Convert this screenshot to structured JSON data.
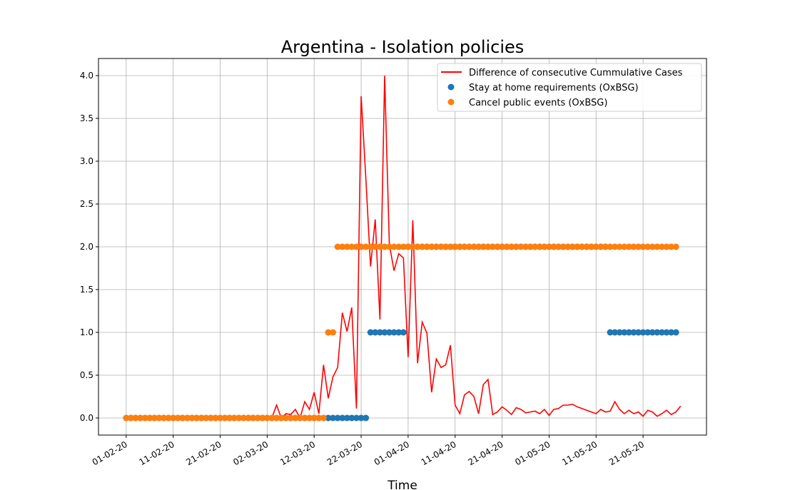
{
  "chart_data": {
    "type": "line",
    "title": "Argentina - Isolation policies",
    "xlabel": "Time",
    "ylabel": "",
    "x_tick_labels": [
      "01-02-20",
      "11-02-20",
      "21-02-20",
      "02-03-20",
      "12-03-20",
      "22-03-20",
      "01-04-20",
      "11-04-20",
      "21-04-20",
      "01-05-20",
      "11-05-20",
      "21-05-20"
    ],
    "y_tick_labels": [
      "0.0",
      "0.5",
      "1.0",
      "1.5",
      "2.0",
      "2.5",
      "3.0",
      "3.5",
      "4.0"
    ],
    "ylim": [
      -0.2,
      4.2
    ],
    "grid": true,
    "legend_position": "top-right",
    "series": [
      {
        "name": "Difference of consecutive Cummulative Cases",
        "kind": "line",
        "color": "#ff0000",
        "points": [
          [
            "29-02-20",
            0.0
          ],
          [
            "01-03-20",
            0.0
          ],
          [
            "02-03-20",
            0.0
          ],
          [
            "03-03-20",
            0.0
          ],
          [
            "04-03-20",
            0.15
          ],
          [
            "05-03-20",
            0.0
          ],
          [
            "06-03-20",
            0.05
          ],
          [
            "07-03-20",
            0.04
          ],
          [
            "08-03-20",
            0.1
          ],
          [
            "09-03-20",
            0.0
          ],
          [
            "10-03-20",
            0.19
          ],
          [
            "11-03-20",
            0.1
          ],
          [
            "12-03-20",
            0.3
          ],
          [
            "13-03-20",
            0.05
          ],
          [
            "14-03-20",
            0.62
          ],
          [
            "15-03-20",
            0.23
          ],
          [
            "16-03-20",
            0.48
          ],
          [
            "17-03-20",
            0.59
          ],
          [
            "18-03-20",
            1.23
          ],
          [
            "19-03-20",
            1.01
          ],
          [
            "20-03-20",
            1.29
          ],
          [
            "21-03-20",
            0.11
          ],
          [
            "22-03-20",
            3.76
          ],
          [
            "23-03-20",
            2.8
          ],
          [
            "24-03-20",
            1.77
          ],
          [
            "25-03-20",
            2.32
          ],
          [
            "26-03-20",
            1.15
          ],
          [
            "27-03-20",
            4.0
          ],
          [
            "28-03-20",
            2.03
          ],
          [
            "29-03-20",
            1.72
          ],
          [
            "30-03-20",
            1.92
          ],
          [
            "31-03-20",
            1.87
          ],
          [
            "01-04-20",
            0.71
          ],
          [
            "02-04-20",
            2.31
          ],
          [
            "03-04-20",
            0.64
          ],
          [
            "04-04-20",
            1.12
          ],
          [
            "05-04-20",
            0.99
          ],
          [
            "06-04-20",
            0.3
          ],
          [
            "07-04-20",
            0.69
          ],
          [
            "08-04-20",
            0.59
          ],
          [
            "09-04-20",
            0.62
          ],
          [
            "10-04-20",
            0.85
          ],
          [
            "11-04-20",
            0.15
          ],
          [
            "12-04-20",
            0.05
          ],
          [
            "13-04-20",
            0.27
          ],
          [
            "14-04-20",
            0.31
          ],
          [
            "15-04-20",
            0.25
          ],
          [
            "16-04-20",
            0.05
          ],
          [
            "17-04-20",
            0.39
          ],
          [
            "18-04-20",
            0.45
          ],
          [
            "19-04-20",
            0.04
          ],
          [
            "20-04-20",
            0.07
          ],
          [
            "21-04-20",
            0.13
          ],
          [
            "22-04-20",
            0.09
          ],
          [
            "23-04-20",
            0.04
          ],
          [
            "24-04-20",
            0.12
          ],
          [
            "25-04-20",
            0.1
          ],
          [
            "26-04-20",
            0.06
          ],
          [
            "27-04-20",
            0.07
          ],
          [
            "28-04-20",
            0.08
          ],
          [
            "29-04-20",
            0.05
          ],
          [
            "30-04-20",
            0.1
          ],
          [
            "01-05-20",
            0.03
          ],
          [
            "02-05-20",
            0.1
          ],
          [
            "03-05-20",
            0.11
          ],
          [
            "04-05-20",
            0.15
          ],
          [
            "05-05-20",
            0.15
          ],
          [
            "06-05-20",
            0.16
          ],
          [
            "07-05-20",
            0.13
          ],
          [
            "08-05-20",
            0.11
          ],
          [
            "09-05-20",
            0.09
          ],
          [
            "10-05-20",
            0.07
          ],
          [
            "11-05-20",
            0.05
          ],
          [
            "12-05-20",
            0.1
          ],
          [
            "13-05-20",
            0.07
          ],
          [
            "14-05-20",
            0.08
          ],
          [
            "15-05-20",
            0.19
          ],
          [
            "16-05-20",
            0.1
          ],
          [
            "17-05-20",
            0.05
          ],
          [
            "18-05-20",
            0.09
          ],
          [
            "19-05-20",
            0.05
          ],
          [
            "20-05-20",
            0.07
          ],
          [
            "21-05-20",
            0.02
          ],
          [
            "22-05-20",
            0.09
          ],
          [
            "23-05-20",
            0.07
          ],
          [
            "24-05-20",
            0.02
          ],
          [
            "25-05-20",
            0.05
          ],
          [
            "26-05-20",
            0.09
          ],
          [
            "27-05-20",
            0.04
          ],
          [
            "28-05-20",
            0.07
          ],
          [
            "29-05-20",
            0.14
          ]
        ]
      },
      {
        "name": "Stay at home requirements (OxBSG)",
        "kind": "scatter",
        "color": "#1f77b4",
        "segments": [
          {
            "from": "01-02-20",
            "to": "23-03-20",
            "value": 0
          },
          {
            "from": "24-03-20",
            "to": "31-03-20",
            "value": 1
          },
          {
            "from": "01-04-20",
            "to": "13-05-20",
            "value": 2
          },
          {
            "from": "14-05-20",
            "to": "28-05-20",
            "value": 1
          }
        ]
      },
      {
        "name": "Cancel public events (OxBSG)",
        "kind": "scatter",
        "color": "#ff7f0e",
        "segments": [
          {
            "from": "01-02-20",
            "to": "14-03-20",
            "value": 0
          },
          {
            "from": "15-03-20",
            "to": "16-03-20",
            "value": 1
          },
          {
            "from": "17-03-20",
            "to": "28-05-20",
            "value": 2
          }
        ]
      }
    ]
  }
}
